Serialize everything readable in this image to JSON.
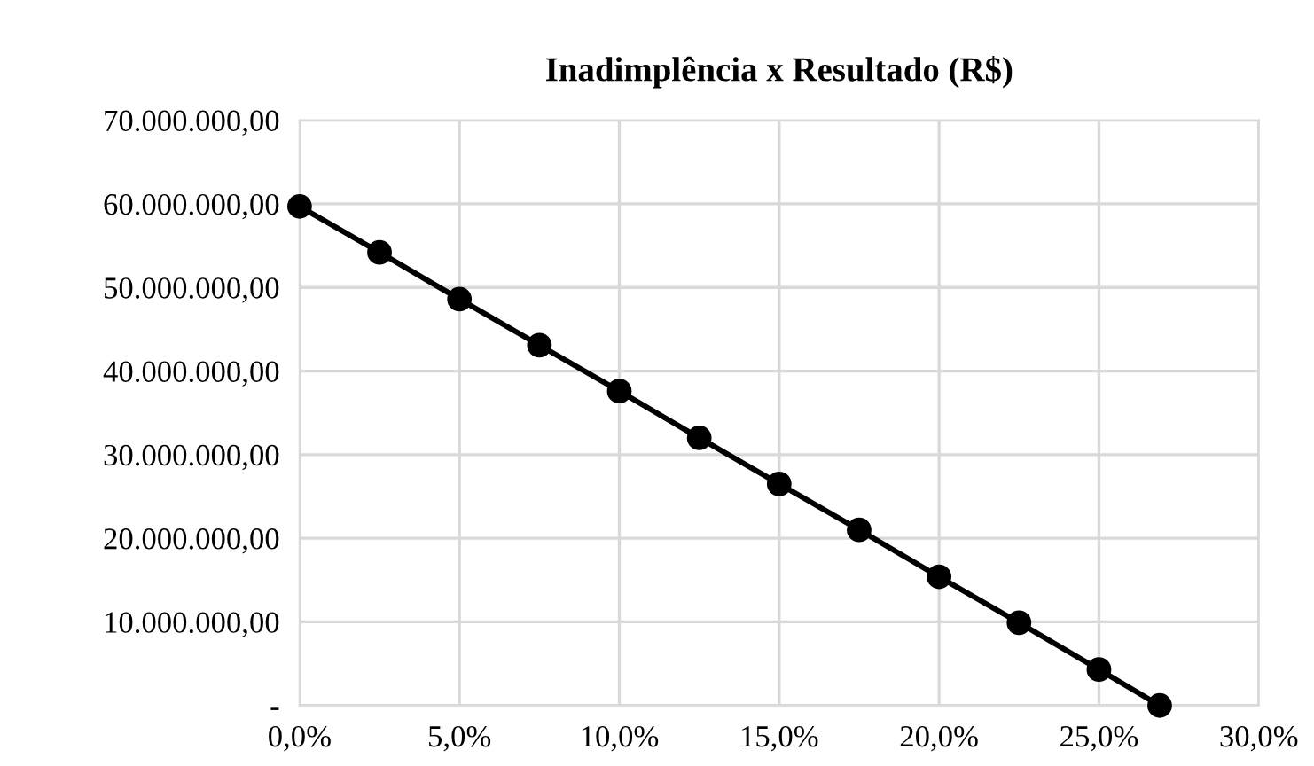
{
  "chart_data": {
    "type": "line",
    "title": "Inadimplência x Resultado (R$)",
    "x": [
      0,
      2.5,
      5,
      7.5,
      10,
      12.5,
      15,
      17.5,
      20,
      22.5,
      25,
      26.9
    ],
    "series": [
      {
        "color": "#000000",
        "values": [
          59700000,
          54200000,
          48600000,
          43100000,
          37600000,
          32000000,
          26500000,
          21000000,
          15400000,
          9900000,
          4300000,
          0
        ]
      }
    ],
    "marker": "circle",
    "line_style": "solid",
    "grid": true,
    "legend": false,
    "xlim": [
      0,
      30
    ],
    "xticks": [
      {
        "value": 0,
        "label": "0,0%"
      },
      {
        "value": 5,
        "label": "5,0%"
      },
      {
        "value": 10,
        "label": "10,0%"
      },
      {
        "value": 15,
        "label": "15,0%"
      },
      {
        "value": 20,
        "label": "20,0%"
      },
      {
        "value": 25,
        "label": "25,0%"
      },
      {
        "value": 30,
        "label": "30,0%"
      }
    ],
    "ylim": [
      0,
      70000000
    ],
    "yticks": [
      {
        "value": 0,
        "label": "-"
      },
      {
        "value": 10000000,
        "label": "10.000.000,00"
      },
      {
        "value": 20000000,
        "label": "20.000.000,00"
      },
      {
        "value": 30000000,
        "label": "30.000.000,00"
      },
      {
        "value": 40000000,
        "label": "40.000.000,00"
      },
      {
        "value": 50000000,
        "label": "50.000.000,00"
      },
      {
        "value": 60000000,
        "label": "60.000.000,00"
      },
      {
        "value": 70000000,
        "label": "70.000.000,00"
      }
    ]
  }
}
